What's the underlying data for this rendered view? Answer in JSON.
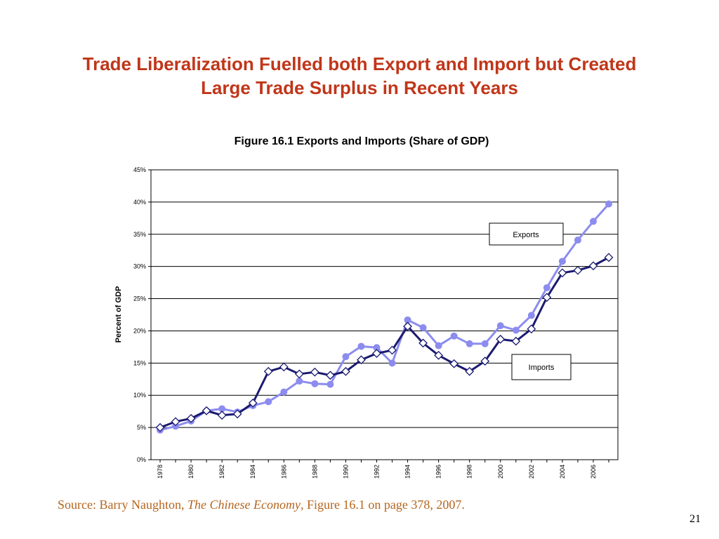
{
  "slide": {
    "title_line1": "Trade Liberalization Fuelled both Export and Import but Created",
    "title_line2": "Large Trade Surplus in Recent Years",
    "source_prefix": "Source: Barry Naughton, ",
    "source_book": "The Chinese Economy",
    "source_suffix": ", Figure 16.1 on page 378, 2007.",
    "page_number": "21",
    "title_color": "#c0361a",
    "source_color": "#b5651d"
  },
  "chart_data": {
    "type": "line",
    "title": "Figure 16.1 Exports and Imports (Share of GDP)",
    "ylabel": "Percent of GDP",
    "xlabel": "",
    "ylim": [
      0,
      45
    ],
    "yticks": [
      "0%",
      "5%",
      "10%",
      "15%",
      "20%",
      "25%",
      "30%",
      "35%",
      "40%",
      "45%"
    ],
    "x": [
      1978,
      1979,
      1980,
      1981,
      1982,
      1983,
      1984,
      1985,
      1986,
      1987,
      1988,
      1989,
      1990,
      1991,
      1992,
      1993,
      1994,
      1995,
      1996,
      1997,
      1998,
      1999,
      2000,
      2001,
      2002,
      2003,
      2004,
      2005,
      2006,
      2007
    ],
    "xticks": [
      "1978",
      "1980",
      "1982",
      "1984",
      "1986",
      "1988",
      "1990",
      "1992",
      "1994",
      "1996",
      "1998",
      "2000",
      "2002",
      "2004",
      "2006"
    ],
    "grid": true,
    "series": [
      {
        "name": "Exports",
        "color": "#8c8cef",
        "marker": "circle",
        "values": [
          4.6,
          5.2,
          6.0,
          7.6,
          7.9,
          7.4,
          8.4,
          9.0,
          10.5,
          12.2,
          11.8,
          11.7,
          16.0,
          17.6,
          17.4,
          15.0,
          21.7,
          20.5,
          17.7,
          19.2,
          18.0,
          18.0,
          20.8,
          20.1,
          22.4,
          26.7,
          30.8,
          34.1,
          37.0,
          39.7
        ]
      },
      {
        "name": "Imports",
        "color": "#1a1a70",
        "marker": "diamond",
        "values": [
          5.0,
          5.9,
          6.4,
          7.6,
          6.9,
          7.1,
          8.8,
          13.7,
          14.4,
          13.3,
          13.6,
          13.1,
          13.7,
          15.5,
          16.5,
          17.0,
          20.7,
          18.1,
          16.2,
          14.9,
          13.7,
          15.3,
          18.7,
          18.4,
          20.3,
          25.2,
          29.0,
          29.4,
          30.1,
          31.4
        ]
      }
    ]
  }
}
